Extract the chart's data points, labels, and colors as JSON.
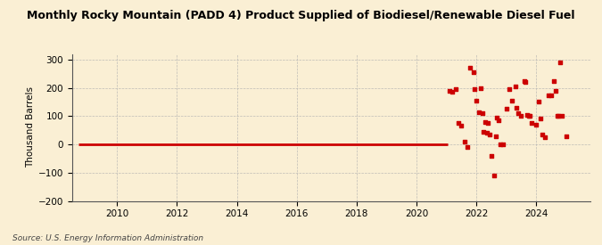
{
  "title": "Monthly Rocky Mountain (PADD 4) Product Supplied of Biodiesel/Renewable Diesel Fuel",
  "ylabel": "Thousand Barrels",
  "source": "Source: U.S. Energy Information Administration",
  "background_color": "#faefd4",
  "line_color": "#cc0000",
  "scatter_color": "#cc0000",
  "xlim": [
    2008.5,
    2025.8
  ],
  "ylim": [
    -200,
    320
  ],
  "yticks": [
    -200,
    -100,
    0,
    100,
    200,
    300
  ],
  "xticks": [
    2010,
    2012,
    2014,
    2016,
    2018,
    2020,
    2022,
    2024
  ],
  "flat_line_x": [
    2008.7,
    2021.05
  ],
  "flat_line_y": [
    0,
    0
  ],
  "scatter_data": [
    [
      2021.1,
      190
    ],
    [
      2021.2,
      185
    ],
    [
      2021.3,
      195
    ],
    [
      2021.4,
      75
    ],
    [
      2021.5,
      65
    ],
    [
      2021.6,
      10
    ],
    [
      2021.7,
      -10
    ],
    [
      2021.8,
      270
    ],
    [
      2021.9,
      255
    ],
    [
      2021.95,
      195
    ],
    [
      2022.0,
      155
    ],
    [
      2022.1,
      115
    ],
    [
      2022.15,
      200
    ],
    [
      2022.2,
      110
    ],
    [
      2022.25,
      45
    ],
    [
      2022.3,
      80
    ],
    [
      2022.35,
      40
    ],
    [
      2022.4,
      75
    ],
    [
      2022.45,
      35
    ],
    [
      2022.5,
      -40
    ],
    [
      2022.6,
      -110
    ],
    [
      2022.65,
      30
    ],
    [
      2022.7,
      95
    ],
    [
      2022.75,
      85
    ],
    [
      2022.8,
      0
    ],
    [
      2022.9,
      0
    ],
    [
      2023.0,
      125
    ],
    [
      2023.1,
      195
    ],
    [
      2023.2,
      155
    ],
    [
      2023.3,
      205
    ],
    [
      2023.35,
      130
    ],
    [
      2023.4,
      110
    ],
    [
      2023.5,
      100
    ],
    [
      2023.6,
      225
    ],
    [
      2023.65,
      220
    ],
    [
      2023.7,
      105
    ],
    [
      2023.75,
      100
    ],
    [
      2023.8,
      100
    ],
    [
      2023.85,
      75
    ],
    [
      2024.0,
      70
    ],
    [
      2024.1,
      150
    ],
    [
      2024.15,
      90
    ],
    [
      2024.2,
      35
    ],
    [
      2024.3,
      25
    ],
    [
      2024.4,
      175
    ],
    [
      2024.5,
      175
    ],
    [
      2024.6,
      225
    ],
    [
      2024.65,
      190
    ],
    [
      2024.7,
      100
    ],
    [
      2024.75,
      100
    ],
    [
      2024.8,
      290
    ],
    [
      2024.85,
      100
    ],
    [
      2025.0,
      30
    ]
  ]
}
